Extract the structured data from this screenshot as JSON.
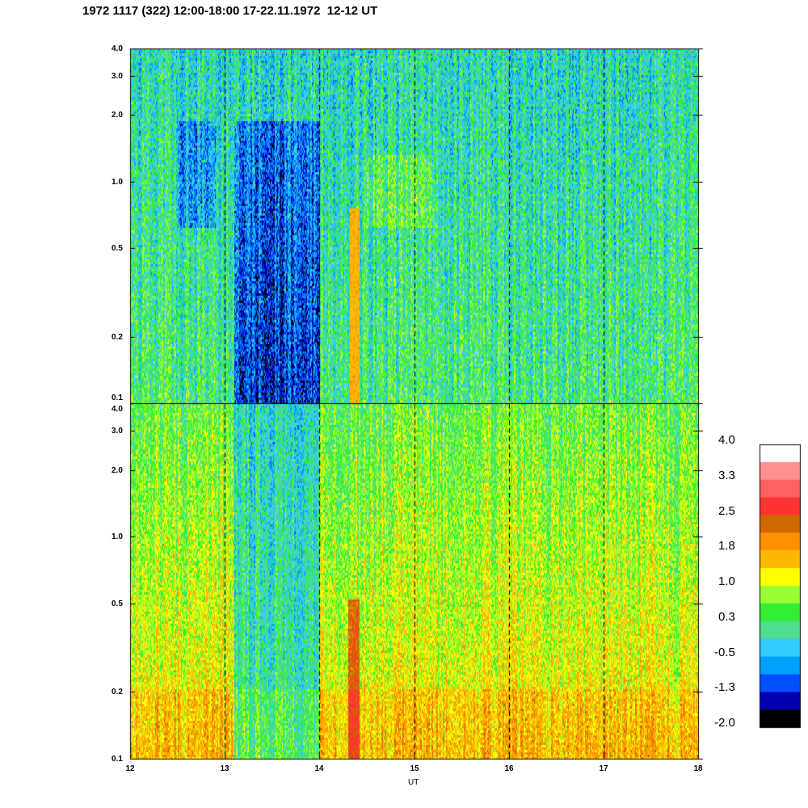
{
  "title": "1972 1117 (322) 12:00-18:00 17-22.11.1972  12-12 UT",
  "chart_data": {
    "type": "heatmap",
    "panels": 2,
    "xlabel": "UT",
    "x_ticks": [
      "12",
      "13",
      "14",
      "15",
      "16",
      "17",
      "18"
    ],
    "xlim": [
      12,
      18
    ],
    "y_scale": "log",
    "ylim": [
      0.1,
      4.0
    ],
    "y_ticks": [
      "0.1",
      "0.2",
      "0.5",
      "1.0",
      "2.0",
      "3.0",
      "4.0"
    ],
    "vertical_dashed_lines_at": [
      13,
      14,
      15,
      16,
      17
    ],
    "colorbar": {
      "labels": [
        "4.0",
        "3.3",
        "2.5",
        "1.8",
        "1.0",
        "0.3",
        "-0.5",
        "-1.3",
        "-2.0"
      ],
      "colors": [
        "#ffffff",
        "#ff9090",
        "#ff6060",
        "#ff3333",
        "#d06800",
        "#ff9000",
        "#ffb800",
        "#ffff00",
        "#99ff33",
        "#33ee33",
        "#50dd90",
        "#33ccff",
        "#00a0ff",
        "#0050ff",
        "#0000b0",
        "#000000"
      ]
    }
  }
}
